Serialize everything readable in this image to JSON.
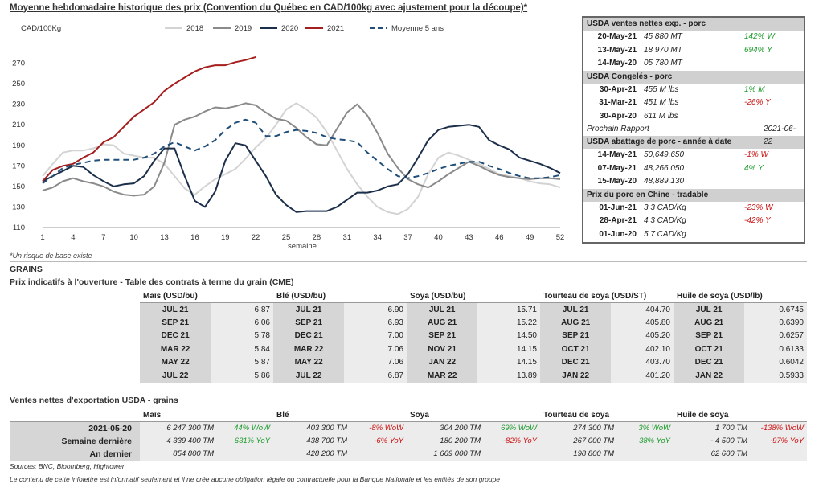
{
  "title": "Moyenne hebdomadaire historique des prix (Convention du Québec en CAD/100kg avec ajustement pour la découpe)*",
  "chart_data": {
    "type": "line",
    "ylabel": "CAD/100Kg",
    "xlabel": "semaine",
    "ylim": [
      110,
      290
    ],
    "yticks": [
      110,
      130,
      150,
      170,
      190,
      210,
      230,
      250,
      270
    ],
    "xlim": [
      1,
      52
    ],
    "xticks": [
      1,
      4,
      7,
      10,
      13,
      16,
      19,
      22,
      25,
      28,
      31,
      34,
      37,
      40,
      43,
      46,
      49,
      52
    ],
    "legend": "top",
    "series": [
      {
        "name": "2018",
        "color": "#d3d3d3",
        "dash": false,
        "x": [
          1,
          2,
          3,
          4,
          5,
          6,
          7,
          8,
          9,
          10,
          11,
          12,
          13,
          14,
          15,
          16,
          17,
          18,
          19,
          20,
          21,
          22,
          23,
          24,
          25,
          26,
          27,
          28,
          29,
          30,
          31,
          32,
          33,
          34,
          35,
          36,
          37,
          38,
          39,
          40,
          41,
          42,
          43,
          44,
          45,
          46,
          47,
          48,
          49,
          50,
          51,
          52
        ],
        "values": [
          160,
          172,
          183,
          185,
          185,
          187,
          191,
          190,
          182,
          180,
          178,
          178,
          172,
          160,
          148,
          142,
          150,
          157,
          162,
          167,
          177,
          188,
          197,
          210,
          225,
          231,
          225,
          217,
          203,
          185,
          167,
          152,
          140,
          130,
          125,
          123,
          128,
          140,
          162,
          178,
          183,
          180,
          176,
          172,
          167,
          162,
          160,
          158,
          155,
          153,
          152,
          149
        ]
      },
      {
        "name": "2019",
        "color": "#8a8a8a",
        "dash": false,
        "x": [
          1,
          2,
          3,
          4,
          5,
          6,
          7,
          8,
          9,
          10,
          11,
          12,
          13,
          14,
          15,
          16,
          17,
          18,
          19,
          20,
          21,
          22,
          23,
          24,
          25,
          26,
          27,
          28,
          29,
          30,
          31,
          32,
          33,
          34,
          35,
          36,
          37,
          38,
          39,
          40,
          41,
          42,
          43,
          44,
          45,
          46,
          47,
          48,
          49,
          50,
          51,
          52
        ],
        "values": [
          146,
          149,
          155,
          158,
          155,
          153,
          150,
          145,
          142,
          141,
          142,
          150,
          173,
          210,
          215,
          218,
          223,
          227,
          226,
          228,
          231,
          229,
          222,
          216,
          214,
          207,
          198,
          191,
          190,
          206,
          222,
          230,
          219,
          202,
          182,
          168,
          157,
          152,
          149,
          155,
          162,
          168,
          174,
          170,
          165,
          161,
          159,
          158,
          157,
          158,
          158,
          157
        ]
      },
      {
        "name": "2020",
        "color": "#1c2f4a",
        "dash": false,
        "x": [
          1,
          2,
          3,
          4,
          5,
          6,
          7,
          8,
          9,
          10,
          11,
          12,
          13,
          14,
          15,
          16,
          17,
          18,
          19,
          20,
          21,
          22,
          23,
          24,
          25,
          26,
          27,
          28,
          29,
          30,
          31,
          32,
          33,
          34,
          35,
          36,
          37,
          38,
          39,
          40,
          41,
          42,
          43,
          44,
          45,
          46,
          47,
          48,
          49,
          50,
          51,
          52
        ],
        "values": [
          155,
          160,
          165,
          170,
          169,
          161,
          155,
          150,
          152,
          153,
          160,
          175,
          187,
          187,
          160,
          136,
          130,
          145,
          175,
          192,
          190,
          175,
          160,
          142,
          132,
          125,
          126,
          126,
          126,
          130,
          137,
          144,
          144,
          146,
          150,
          152,
          162,
          178,
          195,
          205,
          208,
          209,
          210,
          208,
          195,
          190,
          186,
          178,
          175,
          172,
          168,
          163
        ]
      },
      {
        "name": "2021",
        "color": "#a51f1f",
        "dash": false,
        "x": [
          1,
          2,
          3,
          4,
          5,
          6,
          7,
          8,
          9,
          10,
          11,
          12,
          13,
          14,
          15,
          16,
          17,
          18,
          19,
          20,
          21,
          22
        ],
        "values": [
          155,
          166,
          170,
          172,
          178,
          183,
          193,
          198,
          208,
          218,
          225,
          232,
          243,
          250,
          256,
          262,
          266,
          268,
          268,
          271,
          273,
          276
        ]
      },
      {
        "name": "Moyenne 5 ans",
        "color": "#1f4e79",
        "dash": true,
        "x": [
          1,
          2,
          3,
          4,
          5,
          6,
          7,
          8,
          9,
          10,
          11,
          12,
          13,
          14,
          15,
          16,
          17,
          18,
          19,
          20,
          21,
          22,
          23,
          24,
          25,
          26,
          27,
          28,
          29,
          30,
          31,
          32,
          33,
          34,
          35,
          36,
          37,
          38,
          39,
          40,
          41,
          42,
          43,
          44,
          45,
          46,
          47,
          48,
          49,
          50,
          51,
          52
        ],
        "values": [
          153,
          160,
          168,
          171,
          173,
          175,
          176,
          176,
          176,
          176,
          178,
          182,
          189,
          193,
          189,
          185,
          189,
          195,
          205,
          212,
          215,
          212,
          199,
          199,
          203,
          205,
          204,
          202,
          198,
          196,
          195,
          193,
          183,
          175,
          167,
          160,
          158,
          160,
          163,
          167,
          170,
          172,
          174,
          174,
          170,
          167,
          163,
          160,
          158,
          158,
          159,
          161
        ]
      }
    ]
  },
  "chart_note": "*Un risque de base existe",
  "panel": {
    "s1_title": "USDA ventes nettes exp. - porc",
    "s1_rows": [
      {
        "date": "20-May-21",
        "val": "45 880  MT",
        "chg": "142% W",
        "tone": "green"
      },
      {
        "date": "13-May-21",
        "val": "18 970  MT",
        "chg": "694% Y",
        "tone": "green"
      },
      {
        "date": "14-May-20",
        "val": "05 780  MT",
        "chg": "",
        "tone": ""
      }
    ],
    "s2_title": "USDA Congelés - porc",
    "s2_rows": [
      {
        "date": "30-Apr-21",
        "val": "455 M lbs",
        "chg": "1% M",
        "tone": "green"
      },
      {
        "date": "31-Mar-21",
        "val": "451 M lbs",
        "chg": "-26% Y",
        "tone": "red"
      },
      {
        "date": "30-Apr-20",
        "val": "611 M lbs",
        "chg": "",
        "tone": ""
      }
    ],
    "next_label": "Prochain Rapport",
    "next_date": "2021-06-22",
    "s3_title": "USDA abattage de porc - année à date",
    "s3_rows": [
      {
        "date": "14-May-21",
        "val": "50,649,650",
        "chg": "-1% W",
        "tone": "red"
      },
      {
        "date": "07-May-21",
        "val": "48,266,050",
        "chg": "4% Y",
        "tone": "green"
      },
      {
        "date": "15-May-20",
        "val": "48,889,130",
        "chg": "",
        "tone": ""
      }
    ],
    "s4_title": "Prix du porc en Chine - tradable",
    "s4_rows": [
      {
        "date": "01-Jun-21",
        "val": "3.3 CAD/Kg",
        "chg": "-23% W",
        "tone": "red"
      },
      {
        "date": "28-Apr-21",
        "val": "4.3 CAD/Kg",
        "chg": "-42% Y",
        "tone": "red"
      },
      {
        "date": "01-Jun-20",
        "val": "5.7 CAD/Kg",
        "chg": "",
        "tone": ""
      }
    ]
  },
  "grains": {
    "section": "GRAINS",
    "subtitle": "Prix indicatifs à l'ouverture - Table des contrats à terme du grain (CME)",
    "headers": [
      "Maïs (USD/bu)",
      "Blé (USD/bu)",
      "Soya (USD/bu)",
      "Tourteau de soya (USD/ST)",
      "Huile de soya (USD/lb)"
    ],
    "rows": [
      [
        [
          "JUL 21",
          "6.87"
        ],
        [
          "JUL 21",
          "6.90"
        ],
        [
          "JUL 21",
          "15.71"
        ],
        [
          "JUL 21",
          "404.70"
        ],
        [
          "JUL 21",
          "0.6745"
        ]
      ],
      [
        [
          "SEP 21",
          "6.06"
        ],
        [
          "SEP 21",
          "6.93"
        ],
        [
          "AUG 21",
          "15.22"
        ],
        [
          "AUG 21",
          "405.80"
        ],
        [
          "AUG 21",
          "0.6390"
        ]
      ],
      [
        [
          "DEC 21",
          "5.78"
        ],
        [
          "DEC 21",
          "7.00"
        ],
        [
          "SEP 21",
          "14.50"
        ],
        [
          "SEP 21",
          "405.20"
        ],
        [
          "SEP 21",
          "0.6257"
        ]
      ],
      [
        [
          "MAR 22",
          "5.84"
        ],
        [
          "MAR 22",
          "7.06"
        ],
        [
          "NOV 21",
          "14.15"
        ],
        [
          "OCT 21",
          "402.10"
        ],
        [
          "OCT 21",
          "0.6133"
        ]
      ],
      [
        [
          "MAY 22",
          "5.87"
        ],
        [
          "MAY 22",
          "7.06"
        ],
        [
          "JAN 22",
          "14.15"
        ],
        [
          "DEC 21",
          "403.70"
        ],
        [
          "DEC 21",
          "0.6042"
        ]
      ],
      [
        [
          "JUL 22",
          "5.86"
        ],
        [
          "JUL 22",
          "6.87"
        ],
        [
          "MAR 22",
          "13.89"
        ],
        [
          "JAN 22",
          "401.20"
        ],
        [
          "JAN 22",
          "0.5933"
        ]
      ]
    ]
  },
  "export": {
    "title": "Ventes nettes d'exportation USDA - grains",
    "headers": [
      "Maïs",
      "Blé",
      "Soya",
      "Tourteau de soya",
      "Huile de soya"
    ],
    "rows": [
      {
        "label": "2021-05-20",
        "cells": [
          [
            "6 247 300 TM",
            "44% WoW",
            "green"
          ],
          [
            "403 300 TM",
            "-8% WoW",
            "red"
          ],
          [
            "304 200 TM",
            "69% WoW",
            "green"
          ],
          [
            "274 300 TM",
            "3% WoW",
            "green"
          ],
          [
            "1 700 TM",
            "-138% WoW",
            "red"
          ]
        ]
      },
      {
        "label": "Semaine dernière",
        "cells": [
          [
            "4 339 400 TM",
            "631% YoY",
            "green"
          ],
          [
            "438 700 TM",
            "-6% YoY",
            "red"
          ],
          [
            "180 200 TM",
            "-82% YoY",
            "red"
          ],
          [
            "267 000 TM",
            "38% YoY",
            "green"
          ],
          [
            "- 4 500 TM",
            "-97% YoY",
            "red"
          ]
        ]
      },
      {
        "label": "An dernier",
        "cells": [
          [
            "854 800 TM",
            "",
            ""
          ],
          [
            "428 200 TM",
            "",
            ""
          ],
          [
            "1 669 000 TM",
            "",
            ""
          ],
          [
            "198 800 TM",
            "",
            ""
          ],
          [
            "62 600 TM",
            "",
            ""
          ]
        ]
      }
    ]
  },
  "sources": "Sources: BNC, Bloomberg, Hightower",
  "disclaimer": "Le contenu de cette infolettre est informatif seulement et il ne crée aucune obligation légale ou contractuelle pour la Banque Nationale et les entités de son groupe"
}
